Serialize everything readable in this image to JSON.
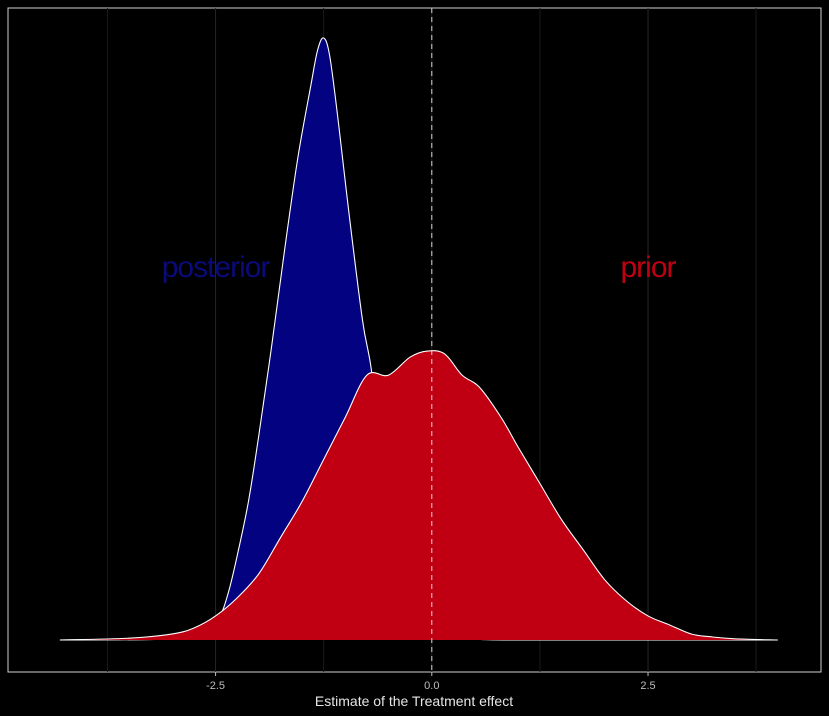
{
  "chart_data": {
    "type": "area",
    "title": "",
    "xlabel": "Estimate of the Treatment effect",
    "ylabel": "",
    "xlim": [
      -4.9,
      4.5
    ],
    "ylim": [
      0,
      1.05
    ],
    "x_ticks": [
      -2.5,
      0.0,
      2.5
    ],
    "x_tick_labels": [
      "-2.5",
      "0.0",
      "2.5"
    ],
    "minor_gridlines_x": [
      -3.75,
      -1.25,
      1.25,
      3.75
    ],
    "vline_x": 0.0,
    "grid": "vertical lines only",
    "legend": "none",
    "series": [
      {
        "name": "posterior",
        "color": "#030382",
        "label_color": "#0a0a7a",
        "label_at": [
          -2.5,
          0.62
        ],
        "points": [
          [
            -4.3,
            0
          ],
          [
            -3.2,
            0.001
          ],
          [
            -2.8,
            0.008
          ],
          [
            -2.6,
            0.02
          ],
          [
            -2.45,
            0.04
          ],
          [
            -2.35,
            0.08
          ],
          [
            -2.25,
            0.14
          ],
          [
            -2.12,
            0.23
          ],
          [
            -2.0,
            0.34
          ],
          [
            -1.85,
            0.49
          ],
          [
            -1.7,
            0.65
          ],
          [
            -1.55,
            0.8
          ],
          [
            -1.4,
            0.92
          ],
          [
            -1.32,
            0.98
          ],
          [
            -1.25,
            1.0
          ],
          [
            -1.18,
            0.97
          ],
          [
            -1.08,
            0.86
          ],
          [
            -0.95,
            0.7
          ],
          [
            -0.8,
            0.53
          ],
          [
            -0.7,
            0.45
          ],
          [
            -0.6,
            0.32
          ],
          [
            -0.5,
            0.18
          ],
          [
            -0.35,
            0.09
          ],
          [
            -0.2,
            0.05
          ],
          [
            0.0,
            0.02
          ],
          [
            0.2,
            0.008
          ],
          [
            0.5,
            0.002
          ],
          [
            1.0,
            0
          ],
          [
            4.0,
            0
          ]
        ]
      },
      {
        "name": "prior",
        "color": "#c00012",
        "label_color": "#c00012",
        "label_at": [
          2.5,
          0.62
        ],
        "points": [
          [
            -4.3,
            0
          ],
          [
            -3.5,
            0.003
          ],
          [
            -3.0,
            0.01
          ],
          [
            -2.75,
            0.02
          ],
          [
            -2.5,
            0.04
          ],
          [
            -2.25,
            0.07
          ],
          [
            -2.0,
            0.11
          ],
          [
            -1.75,
            0.17
          ],
          [
            -1.5,
            0.23
          ],
          [
            -1.25,
            0.3
          ],
          [
            -1.0,
            0.37
          ],
          [
            -0.75,
            0.44
          ],
          [
            -0.5,
            0.44
          ],
          [
            -0.25,
            0.47
          ],
          [
            -0.05,
            0.48
          ],
          [
            0.15,
            0.475
          ],
          [
            0.35,
            0.44
          ],
          [
            0.55,
            0.42
          ],
          [
            0.8,
            0.37
          ],
          [
            1.0,
            0.32
          ],
          [
            1.25,
            0.26
          ],
          [
            1.5,
            0.2
          ],
          [
            1.75,
            0.15
          ],
          [
            2.0,
            0.1
          ],
          [
            2.25,
            0.065
          ],
          [
            2.5,
            0.04
          ],
          [
            2.75,
            0.025
          ],
          [
            3.0,
            0.01
          ],
          [
            3.25,
            0.005
          ],
          [
            3.5,
            0.002
          ],
          [
            4.0,
            0
          ]
        ]
      }
    ]
  }
}
